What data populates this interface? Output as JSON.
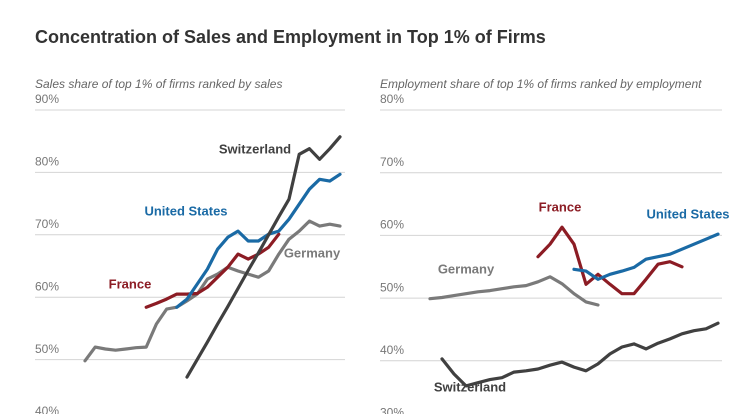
{
  "title": "Concentration of Sales and Employment in Top 1% of Firms",
  "chart_data": [
    {
      "type": "line",
      "subtitle": "Sales share of top 1% of firms ranked by sales",
      "ylim": [
        40,
        90
      ],
      "yticks": [
        {
          "value": 40,
          "label": "40%"
        },
        {
          "value": 50,
          "label": "50%"
        },
        {
          "value": 60,
          "label": "60%"
        },
        {
          "value": 70,
          "label": "70%"
        },
        {
          "value": 80,
          "label": "80%"
        },
        {
          "value": 90,
          "label": "90%"
        }
      ],
      "grid": true,
      "series": [
        {
          "name": "Germany",
          "color": "#7a7a7a",
          "values": [
            49.8,
            52.0,
            51.7,
            51.5,
            51.7,
            51.9,
            52.0,
            55.7,
            58.1,
            58.4,
            59.4,
            60.5,
            62.9,
            63.7,
            64.8,
            64.2,
            63.7,
            63.2,
            64.2,
            66.9,
            69.3,
            70.6,
            72.2,
            71.4,
            71.7,
            71.4
          ]
        },
        {
          "name": "France",
          "color": "#8c1c24",
          "values": [
            null,
            null,
            null,
            null,
            null,
            null,
            58.4,
            59.0,
            59.7,
            60.5,
            60.5,
            60.6,
            61.6,
            63.2,
            64.8,
            66.9,
            66.1,
            66.9,
            68.0,
            70.1,
            null,
            null,
            null,
            null,
            null,
            null
          ]
        },
        {
          "name": "United States",
          "color": "#1a6aa5",
          "values": [
            null,
            null,
            null,
            null,
            null,
            null,
            null,
            null,
            null,
            58.4,
            59.7,
            62.1,
            64.5,
            67.7,
            69.6,
            70.6,
            69.0,
            69.0,
            70.1,
            70.6,
            72.5,
            74.9,
            77.3,
            78.9,
            78.6,
            79.7
          ]
        },
        {
          "name": "Switzerland",
          "color": "#404040",
          "values": [
            null,
            null,
            null,
            null,
            null,
            null,
            null,
            null,
            null,
            null,
            47.2,
            50.0,
            52.8,
            55.7,
            58.5,
            61.4,
            64.3,
            67.1,
            70.0,
            72.9,
            75.7,
            82.9,
            83.8,
            82.1,
            83.8,
            85.7
          ]
        }
      ]
    },
    {
      "type": "line",
      "subtitle": "Employment share of top 1% of firms ranked by employment",
      "ylim": [
        30,
        80
      ],
      "yticks": [
        {
          "value": 30,
          "label": "30%"
        },
        {
          "value": 40,
          "label": "40%"
        },
        {
          "value": 50,
          "label": "50%"
        },
        {
          "value": 60,
          "label": "60%"
        },
        {
          "value": 70,
          "label": "70%"
        },
        {
          "value": 80,
          "label": "80%"
        }
      ],
      "grid": true,
      "series": [
        {
          "name": "Germany",
          "color": "#7a7a7a",
          "values": [
            49.9,
            50.1,
            50.4,
            50.7,
            51.0,
            51.2,
            51.5,
            51.8,
            52.0,
            52.6,
            53.4,
            52.3,
            50.7,
            49.4,
            48.9,
            null,
            null,
            null,
            null,
            null,
            null,
            null,
            null,
            null,
            null
          ]
        },
        {
          "name": "France",
          "color": "#8c1c24",
          "values": [
            null,
            null,
            null,
            null,
            null,
            null,
            null,
            null,
            null,
            56.6,
            58.6,
            61.3,
            58.6,
            52.2,
            53.8,
            52.2,
            50.7,
            50.7,
            53.0,
            55.4,
            55.8,
            55.0,
            null,
            null,
            null
          ]
        },
        {
          "name": "United States",
          "color": "#1a6aa5",
          "values": [
            null,
            null,
            null,
            null,
            null,
            null,
            null,
            null,
            null,
            null,
            null,
            null,
            54.6,
            54.3,
            53.0,
            53.8,
            54.3,
            54.9,
            56.2,
            56.6,
            57.0,
            57.8,
            58.6,
            59.4,
            60.2
          ]
        },
        {
          "name": "Switzerland",
          "color": "#404040",
          "values": [
            null,
            40.3,
            37.9,
            36.0,
            36.5,
            37.0,
            37.3,
            38.2,
            38.4,
            38.7,
            39.3,
            39.8,
            39.0,
            38.4,
            39.5,
            41.1,
            42.2,
            42.7,
            41.9,
            42.8,
            43.5,
            44.3,
            44.8,
            45.1,
            46.0
          ]
        }
      ]
    }
  ]
}
